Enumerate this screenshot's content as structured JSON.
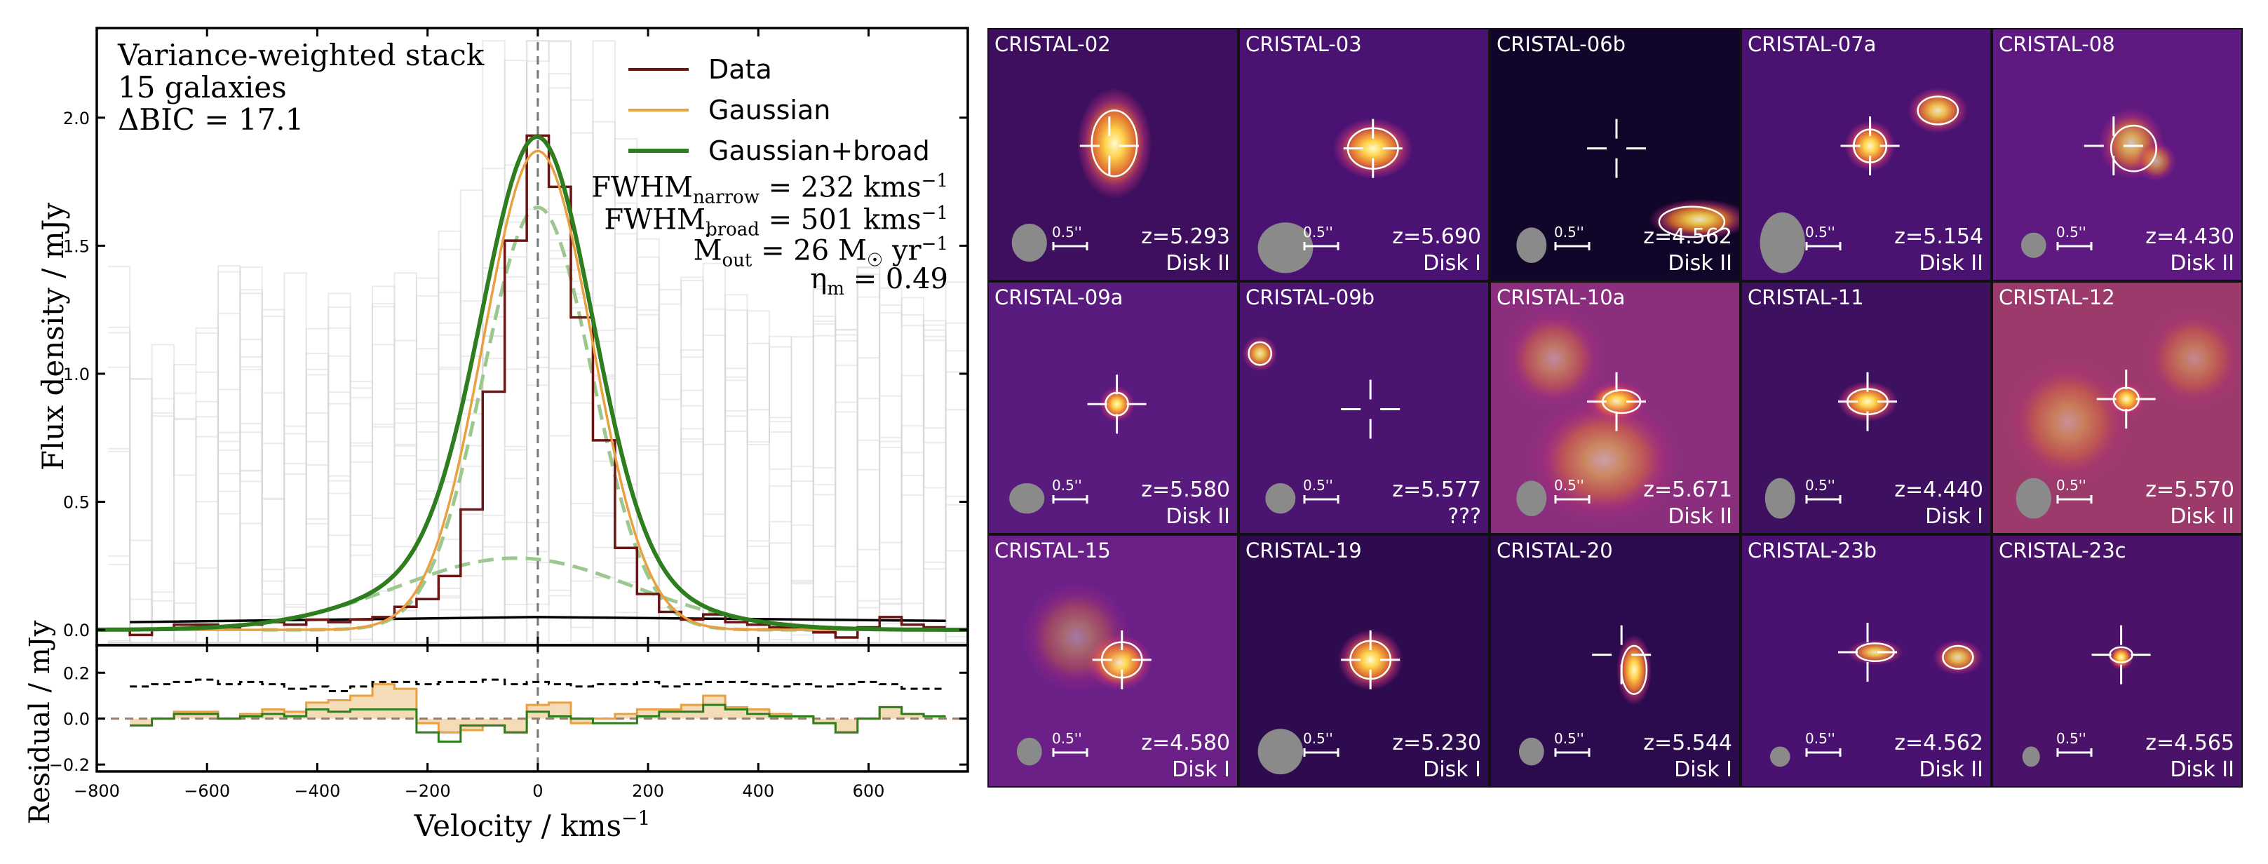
{
  "chart_data": [
    {
      "type": "line",
      "panel": "stacked-spectrum",
      "ylabel": "Flux density / mJy",
      "xlim": [
        -800,
        780
      ],
      "ylim": [
        -0.06,
        2.35
      ],
      "yticks": [
        0.0,
        0.5,
        1.0,
        1.5,
        2.0
      ],
      "annotations": {
        "line1": "Variance-weighted stack",
        "line2": "15 galaxies",
        "line3": "ΔBIC = 17.1"
      },
      "fwhm_narrow": {
        "prefix": "FWHM",
        "sub": "narrow",
        "value": "= 232 kms",
        "sup": "−1"
      },
      "fwhm_broad": {
        "prefix": "FWHM",
        "sub": "broad",
        "value": "= 501 kms",
        "sup": "−1"
      },
      "mout": {
        "prefix": "Ṁ",
        "sub": "out",
        "value": "= 26 M",
        "sun": "☉",
        "unit": " yr",
        "sup": "−1"
      },
      "eta": {
        "prefix": "η",
        "sub": "m",
        "value": "= 0.49"
      },
      "legend": [
        {
          "name": "Data",
          "color": "#6b1515"
        },
        {
          "name": "Gaussian",
          "color": "#e8a040"
        },
        {
          "name": "Gaussian+broad",
          "color": "#2e7d1e"
        }
      ],
      "data_histogram": {
        "bin_edges": [
          -740,
          -700,
          -660,
          -620,
          -580,
          -540,
          -500,
          -460,
          -420,
          -380,
          -340,
          -300,
          -260,
          -220,
          -180,
          -140,
          -100,
          -60,
          -20,
          20,
          60,
          100,
          140,
          180,
          220,
          260,
          300,
          340,
          380,
          420,
          460,
          500,
          540,
          580,
          620,
          660,
          700,
          740
        ],
        "values": [
          -0.02,
          0.0,
          0.02,
          0.02,
          0.01,
          0.02,
          0.03,
          0.02,
          0.04,
          0.03,
          0.04,
          0.05,
          0.09,
          0.12,
          0.21,
          0.47,
          0.93,
          1.52,
          1.93,
          1.73,
          1.22,
          0.74,
          0.32,
          0.14,
          0.07,
          0.04,
          0.06,
          0.03,
          0.02,
          0.01,
          0.01,
          -0.01,
          -0.03,
          0.01,
          0.05,
          0.02,
          0.01
        ]
      },
      "gaussian_fit": {
        "amplitude": 1.87,
        "center": 0,
        "fwhm": 232
      },
      "broad_fit": {
        "narrow": {
          "amplitude": 1.65,
          "center": 0,
          "fwhm": 232
        },
        "broad": {
          "amplitude": 0.28,
          "center": -40,
          "fwhm": 501
        }
      },
      "noise_level": 0.04
    },
    {
      "type": "line",
      "panel": "residuals",
      "ylabel": "Residual / mJy",
      "xlabel": "Velocity / kms",
      "xlabel_sup": "−1",
      "xlim": [
        -800,
        780
      ],
      "ylim": [
        -0.23,
        0.32
      ],
      "yticks": [
        -0.2,
        0.0,
        0.2
      ],
      "xticks": [
        -800,
        -600,
        -400,
        -200,
        0,
        200,
        400,
        600
      ],
      "xtick_labels": [
        "−800",
        "−600",
        "−400",
        "−200",
        "0",
        "200",
        "400",
        "600"
      ],
      "ytick_labels_main": [
        "0.0",
        "0.5",
        "1.0",
        "1.5",
        "2.0"
      ],
      "ytick_labels_resid": [
        "−0.2",
        "0.0",
        "0.2"
      ],
      "residual_gaussian": [
        -0.03,
        0.0,
        0.03,
        0.03,
        0.0,
        0.02,
        0.04,
        0.03,
        0.07,
        0.08,
        0.1,
        0.15,
        0.13,
        -0.02,
        -0.06,
        -0.05,
        -0.03,
        -0.06,
        0.06,
        0.07,
        -0.02,
        0.0,
        0.02,
        0.04,
        0.04,
        0.06,
        0.1,
        0.05,
        0.04,
        0.02,
        0.01,
        -0.02,
        -0.06,
        0.0,
        0.05,
        0.02,
        0.01
      ],
      "residual_broad": [
        -0.03,
        0.0,
        0.02,
        0.02,
        0.0,
        0.01,
        0.02,
        0.01,
        0.04,
        0.03,
        0.04,
        0.04,
        0.04,
        -0.06,
        -0.1,
        -0.03,
        -0.03,
        -0.06,
        0.03,
        0.01,
        0.0,
        -0.02,
        -0.02,
        0.01,
        0.03,
        0.03,
        0.06,
        0.04,
        0.02,
        0.01,
        0.01,
        -0.02,
        -0.06,
        0.0,
        0.05,
        0.02,
        0.01
      ],
      "noise_envelope": [
        0.14,
        0.15,
        0.16,
        0.17,
        0.15,
        0.16,
        0.15,
        0.13,
        0.14,
        0.12,
        0.14,
        0.16,
        0.16,
        0.15,
        0.16,
        0.16,
        0.17,
        0.15,
        0.16,
        0.15,
        0.14,
        0.15,
        0.15,
        0.16,
        0.14,
        0.15,
        0.16,
        0.16,
        0.15,
        0.14,
        0.15,
        0.14,
        0.15,
        0.16,
        0.15,
        0.13,
        0.13
      ]
    }
  ],
  "galaxies": [
    {
      "name": "CRISTAL-02",
      "z": "z=5.293",
      "disk": "Disk II",
      "scale": "0.5''",
      "bg": "#3d0f5e",
      "blobs": [
        [
          0.5,
          0.45,
          0.15,
          0.22,
          1.0
        ]
      ],
      "beam": [
        0.1,
        0.87,
        0.07,
        0.075
      ],
      "contours": [
        [
          0.5,
          0.45,
          0.18,
          0.26
        ]
      ],
      "cross": [
        0.48,
        0.46
      ]
    },
    {
      "name": "CRISTAL-03",
      "z": "z=5.690",
      "disk": "Disk I",
      "scale": "0.5''",
      "bg": "#4a1272",
      "blobs": [
        [
          0.53,
          0.47,
          0.16,
          0.12,
          1.0
        ]
      ],
      "beam": [
        0.12,
        0.89,
        0.11,
        0.1
      ],
      "contours": [
        [
          0.53,
          0.47,
          0.2,
          0.16
        ]
      ],
      "cross": [
        0.53,
        0.47
      ]
    },
    {
      "name": "CRISTAL-06b",
      "z": "z=4.562",
      "disk": "Disk II",
      "scale": "0.5''",
      "bg": "#12052a",
      "blobs": [
        [
          0.83,
          0.75,
          0.2,
          0.08,
          0.9
        ]
      ],
      "beam": [
        0.1,
        0.88,
        0.06,
        0.07
      ],
      "contours": [
        [
          0.8,
          0.76,
          0.26,
          0.12
        ]
      ],
      "cross": [
        0.5,
        0.47
      ]
    },
    {
      "name": "CRISTAL-07a",
      "z": "z=5.154",
      "disk": "Disk II",
      "scale": "0.5''",
      "bg": "#4b1371",
      "blobs": [
        [
          0.51,
          0.46,
          0.1,
          0.1,
          1.0
        ],
        [
          0.78,
          0.32,
          0.12,
          0.09,
          0.9
        ]
      ],
      "beam": [
        0.1,
        0.87,
        0.09,
        0.12
      ],
      "contours": [
        [
          0.51,
          0.46,
          0.13,
          0.13
        ],
        [
          0.78,
          0.32,
          0.16,
          0.11
        ]
      ],
      "cross": [
        0.51,
        0.46
      ]
    },
    {
      "name": "CRISTAL-08",
      "z": "z=4.430",
      "disk": "Disk II",
      "scale": "0.5''",
      "bg": "#5e1a80",
      "blobs": [
        [
          0.55,
          0.45,
          0.13,
          0.14,
          0.75
        ],
        [
          0.65,
          0.52,
          0.08,
          0.08,
          0.6
        ]
      ],
      "beam": [
        0.1,
        0.88,
        0.05,
        0.05
      ],
      "contours": [
        [
          0.56,
          0.47,
          0.18,
          0.18
        ]
      ],
      "cross": [
        0.48,
        0.46
      ]
    },
    {
      "name": "CRISTAL-09a",
      "z": "z=5.580",
      "disk": "Disk II",
      "scale": "0.5''",
      "bg": "#5a1b7e",
      "blobs": [
        [
          0.51,
          0.48,
          0.07,
          0.07,
          1.0
        ]
      ],
      "beam": [
        0.09,
        0.88,
        0.07,
        0.06
      ],
      "contours": [
        [
          0.51,
          0.48,
          0.09,
          0.09
        ]
      ],
      "cross": [
        0.51,
        0.48
      ]
    },
    {
      "name": "CRISTAL-09b",
      "z": "z=5.577",
      "disk": "???",
      "scale": "0.5''",
      "bg": "#4a1470",
      "blobs": [
        [
          0.08,
          0.28,
          0.07,
          0.07,
          0.9
        ]
      ],
      "beam": [
        0.1,
        0.88,
        0.06,
        0.06
      ],
      "contours": [
        [
          0.08,
          0.28,
          0.09,
          0.09
        ]
      ],
      "cross": [
        0.52,
        0.5
      ]
    },
    {
      "name": "CRISTAL-10a",
      "z": "z=5.671",
      "disk": "Disk II",
      "scale": "0.5''",
      "bg": "#8c2e7e",
      "blobs": [
        [
          0.5,
          0.47,
          0.12,
          0.08,
          1.0
        ],
        [
          0.45,
          0.7,
          0.3,
          0.25,
          0.55
        ],
        [
          0.25,
          0.3,
          0.2,
          0.2,
          0.45
        ]
      ],
      "beam": [
        0.1,
        0.88,
        0.06,
        0.07
      ],
      "contours": [
        [
          0.52,
          0.47,
          0.15,
          0.09
        ]
      ],
      "cross": [
        0.5,
        0.47
      ]
    },
    {
      "name": "CRISTAL-11",
      "z": "z=4.440",
      "disk": "Disk I",
      "scale": "0.5''",
      "bg": "#3d1060",
      "blobs": [
        [
          0.5,
          0.47,
          0.12,
          0.08,
          1.0
        ]
      ],
      "beam": [
        0.09,
        0.88,
        0.06,
        0.08
      ],
      "contours": [
        [
          0.5,
          0.47,
          0.16,
          0.1
        ]
      ],
      "cross": [
        0.5,
        0.47
      ]
    },
    {
      "name": "CRISTAL-12",
      "z": "z=5.570",
      "disk": "Disk II",
      "scale": "0.5''",
      "bg": "#9c3a6c",
      "blobs": [
        [
          0.53,
          0.46,
          0.08,
          0.07,
          1.0
        ],
        [
          0.3,
          0.55,
          0.25,
          0.25,
          0.45
        ],
        [
          0.8,
          0.3,
          0.2,
          0.2,
          0.4
        ]
      ],
      "beam": [
        0.1,
        0.88,
        0.07,
        0.08
      ],
      "contours": [
        [
          0.53,
          0.46,
          0.1,
          0.09
        ]
      ],
      "cross": [
        0.53,
        0.46
      ]
    },
    {
      "name": "CRISTAL-15",
      "z": "z=4.580",
      "disk": "Disk I",
      "scale": "0.5''",
      "bg": "#6b2088",
      "blobs": [
        [
          0.52,
          0.5,
          0.13,
          0.11,
          1.0
        ],
        [
          0.35,
          0.4,
          0.22,
          0.22,
          0.4
        ]
      ],
      "beam": [
        0.1,
        0.88,
        0.05,
        0.055
      ],
      "contours": [
        [
          0.53,
          0.49,
          0.16,
          0.14
        ]
      ],
      "cross": [
        0.53,
        0.49
      ]
    },
    {
      "name": "CRISTAL-19",
      "z": "z=5.230",
      "disk": "Disk I",
      "scale": "0.5''",
      "bg": "#2e0a4e",
      "blobs": [
        [
          0.52,
          0.49,
          0.13,
          0.12,
          1.0
        ]
      ],
      "beam": [
        0.1,
        0.88,
        0.09,
        0.09
      ],
      "contours": [
        [
          0.52,
          0.49,
          0.16,
          0.15
        ]
      ],
      "cross": [
        0.52,
        0.49
      ]
    },
    {
      "name": "CRISTAL-20",
      "z": "z=5.544",
      "disk": "Disk I",
      "scale": "0.5''",
      "bg": "#2c0a4e",
      "blobs": [
        [
          0.57,
          0.53,
          0.07,
          0.14,
          1.0
        ]
      ],
      "beam": [
        0.1,
        0.88,
        0.05,
        0.055
      ],
      "contours": [
        [
          0.57,
          0.53,
          0.1,
          0.19
        ]
      ],
      "cross": [
        0.52,
        0.47
      ]
    },
    {
      "name": "CRISTAL-23b",
      "z": "z=4.562",
      "disk": "Disk II",
      "scale": "0.5''",
      "bg": "#4a1270",
      "blobs": [
        [
          0.53,
          0.46,
          0.11,
          0.05,
          0.9
        ],
        [
          0.86,
          0.48,
          0.1,
          0.07,
          0.85
        ]
      ],
      "beam": [
        0.09,
        0.9,
        0.04,
        0.04
      ],
      "contours": [
        [
          0.53,
          0.46,
          0.15,
          0.07
        ],
        [
          0.86,
          0.48,
          0.12,
          0.09
        ]
      ],
      "cross": [
        0.5,
        0.46
      ]
    },
    {
      "name": "CRISTAL-23c",
      "z": "z=4.565",
      "disk": "Disk II",
      "scale": "0.5''",
      "bg": "#4a1268",
      "blobs": [
        [
          0.51,
          0.48,
          0.05,
          0.05,
          1.0
        ]
      ],
      "beam": [
        0.09,
        0.9,
        0.035,
        0.04
      ],
      "contours": [
        [
          0.51,
          0.47,
          0.09,
          0.06
        ]
      ],
      "cross": [
        0.51,
        0.47
      ]
    }
  ]
}
